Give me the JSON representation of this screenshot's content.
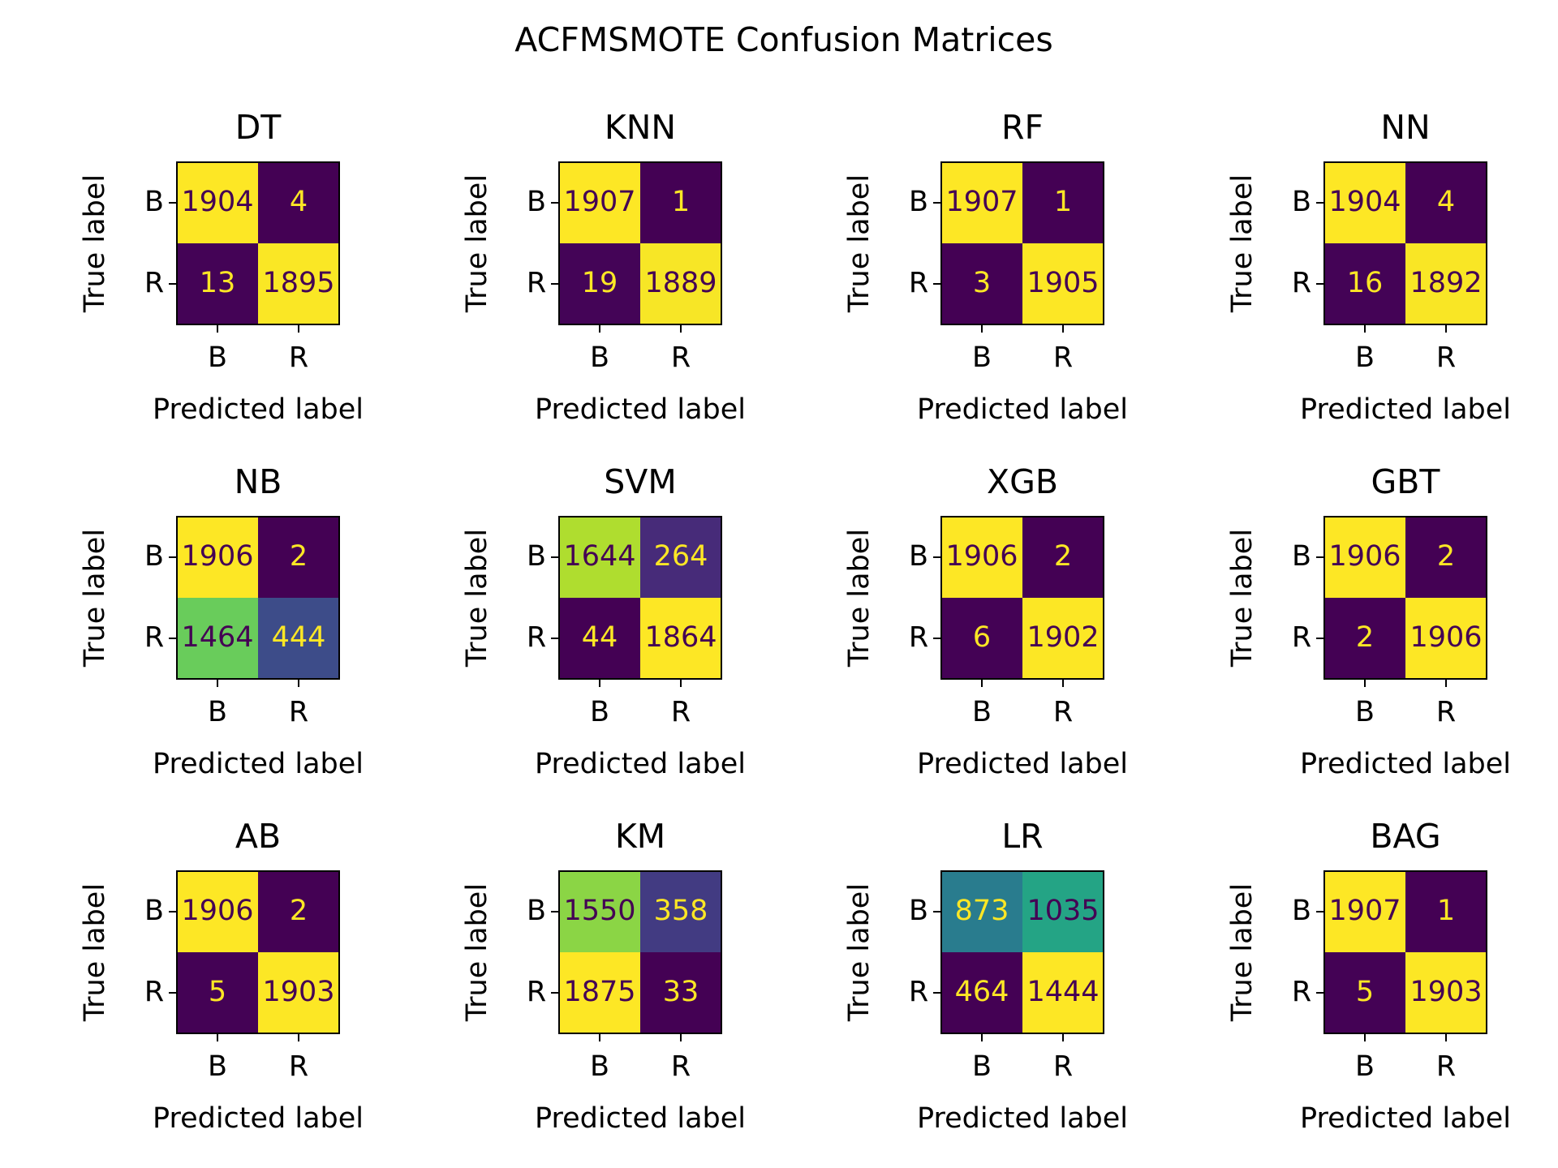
{
  "title": "ACFMSMOTE Confusion Matrices",
  "chart_data": [
    {
      "type": "heatmap",
      "title": "DT",
      "xlabel": "Predicted label",
      "ylabel": "True label",
      "x_ticks": [
        "B",
        "R"
      ],
      "y_ticks": [
        "B",
        "R"
      ],
      "values": [
        [
          1904,
          4
        ],
        [
          13,
          1895
        ]
      ]
    },
    {
      "type": "heatmap",
      "title": "KNN",
      "xlabel": "Predicted label",
      "ylabel": "True label",
      "x_ticks": [
        "B",
        "R"
      ],
      "y_ticks": [
        "B",
        "R"
      ],
      "values": [
        [
          1907,
          1
        ],
        [
          19,
          1889
        ]
      ]
    },
    {
      "type": "heatmap",
      "title": "RF",
      "xlabel": "Predicted label",
      "ylabel": "True label",
      "x_ticks": [
        "B",
        "R"
      ],
      "y_ticks": [
        "B",
        "R"
      ],
      "values": [
        [
          1907,
          1
        ],
        [
          3,
          1905
        ]
      ]
    },
    {
      "type": "heatmap",
      "title": "NN",
      "xlabel": "Predicted label",
      "ylabel": "True label",
      "x_ticks": [
        "B",
        "R"
      ],
      "y_ticks": [
        "B",
        "R"
      ],
      "values": [
        [
          1904,
          4
        ],
        [
          16,
          1892
        ]
      ]
    },
    {
      "type": "heatmap",
      "title": "NB",
      "xlabel": "Predicted label",
      "ylabel": "True label",
      "x_ticks": [
        "B",
        "R"
      ],
      "y_ticks": [
        "B",
        "R"
      ],
      "values": [
        [
          1906,
          2
        ],
        [
          1464,
          444
        ]
      ]
    },
    {
      "type": "heatmap",
      "title": "SVM",
      "xlabel": "Predicted label",
      "ylabel": "True label",
      "x_ticks": [
        "B",
        "R"
      ],
      "y_ticks": [
        "B",
        "R"
      ],
      "values": [
        [
          1644,
          264
        ],
        [
          44,
          1864
        ]
      ]
    },
    {
      "type": "heatmap",
      "title": "XGB",
      "xlabel": "Predicted label",
      "ylabel": "True label",
      "x_ticks": [
        "B",
        "R"
      ],
      "y_ticks": [
        "B",
        "R"
      ],
      "values": [
        [
          1906,
          2
        ],
        [
          6,
          1902
        ]
      ]
    },
    {
      "type": "heatmap",
      "title": "GBT",
      "xlabel": "Predicted label",
      "ylabel": "True label",
      "x_ticks": [
        "B",
        "R"
      ],
      "y_ticks": [
        "B",
        "R"
      ],
      "values": [
        [
          1906,
          2
        ],
        [
          2,
          1906
        ]
      ]
    },
    {
      "type": "heatmap",
      "title": "AB",
      "xlabel": "Predicted label",
      "ylabel": "True label",
      "x_ticks": [
        "B",
        "R"
      ],
      "y_ticks": [
        "B",
        "R"
      ],
      "values": [
        [
          1906,
          2
        ],
        [
          5,
          1903
        ]
      ]
    },
    {
      "type": "heatmap",
      "title": "KM",
      "xlabel": "Predicted label",
      "ylabel": "True label",
      "x_ticks": [
        "B",
        "R"
      ],
      "y_ticks": [
        "B",
        "R"
      ],
      "values": [
        [
          1550,
          358
        ],
        [
          1875,
          33
        ]
      ]
    },
    {
      "type": "heatmap",
      "title": "LR",
      "xlabel": "Predicted label",
      "ylabel": "True label",
      "x_ticks": [
        "B",
        "R"
      ],
      "y_ticks": [
        "B",
        "R"
      ],
      "values": [
        [
          873,
          1035
        ],
        [
          464,
          1444
        ]
      ]
    },
    {
      "type": "heatmap",
      "title": "BAG",
      "xlabel": "Predicted label",
      "ylabel": "True label",
      "x_ticks": [
        "B",
        "R"
      ],
      "y_ticks": [
        "B",
        "R"
      ],
      "values": [
        [
          1907,
          1
        ],
        [
          5,
          1903
        ]
      ]
    }
  ],
  "colormap": "viridis",
  "colors": {
    "dark": "#440154",
    "bright": "#fde725"
  }
}
